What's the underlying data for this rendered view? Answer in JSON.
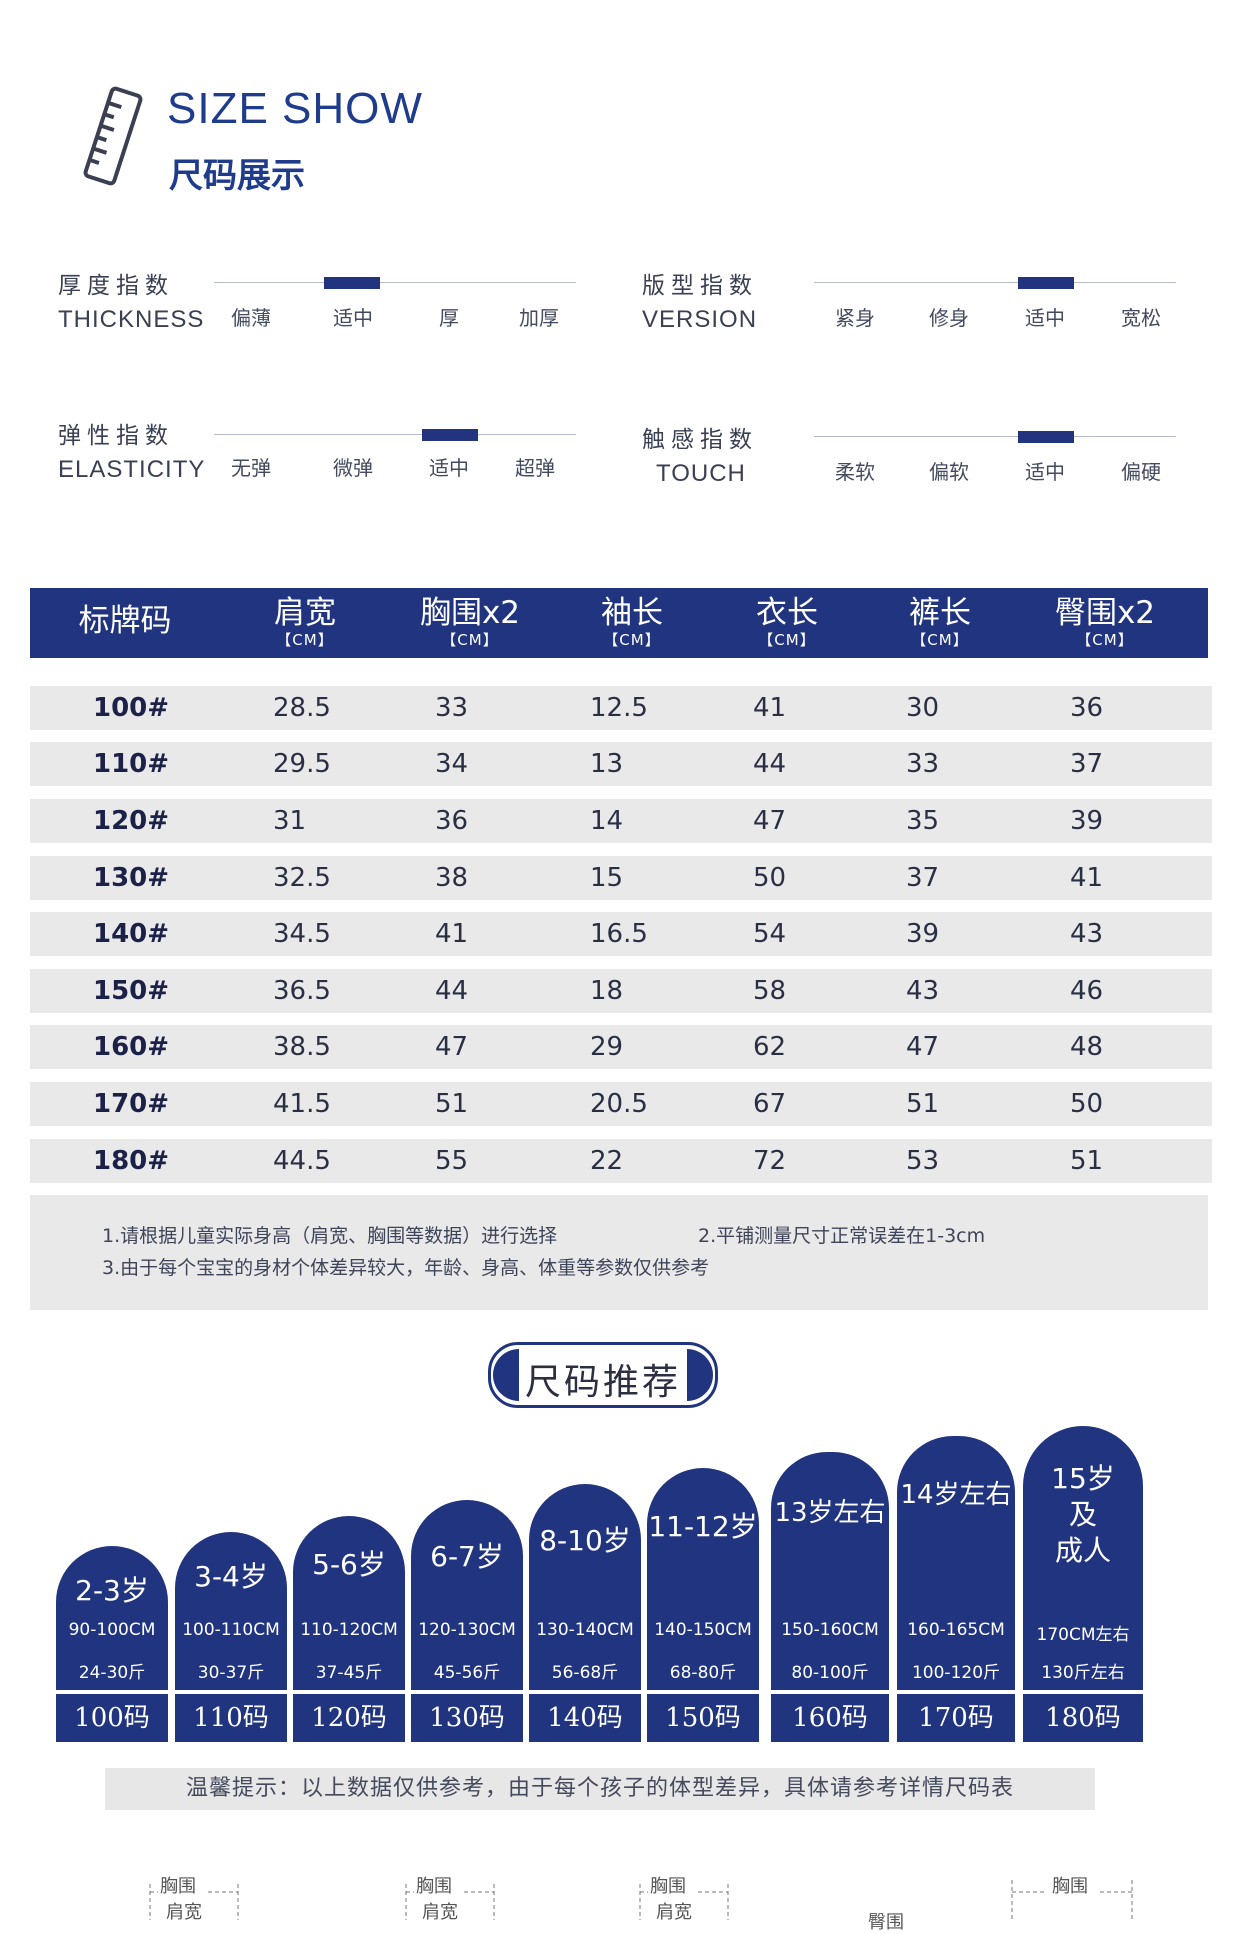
{
  "header": {
    "title_en": "SIZE SHOW",
    "title_zh": "尺码展示",
    "icon": "ruler-icon"
  },
  "indices": [
    {
      "zh": "厚度指数",
      "en": "THICKNESS",
      "options": [
        "偏薄",
        "适中",
        "厚",
        "加厚"
      ],
      "selected": 1
    },
    {
      "zh": "版型指数",
      "en": "VERSION",
      "options": [
        "紧身",
        "修身",
        "适中",
        "宽松"
      ],
      "selected": 2
    },
    {
      "zh": "弹性指数",
      "en": "ELASTICITY",
      "options": [
        "无弹",
        "微弹",
        "适中",
        "超弹"
      ],
      "selected": 2
    },
    {
      "zh": "触感指数",
      "en": "TOUCH",
      "options": [
        "柔软",
        "偏软",
        "适中",
        "偏硬"
      ],
      "selected": 2
    }
  ],
  "table": {
    "headers": [
      {
        "label": "标牌码",
        "unit": ""
      },
      {
        "label": "肩宽",
        "unit": "【CM】"
      },
      {
        "label": "胸围x2",
        "unit": "【CM】"
      },
      {
        "label": "袖长",
        "unit": "【CM】"
      },
      {
        "label": "衣长",
        "unit": "【CM】"
      },
      {
        "label": "裤长",
        "unit": "【CM】"
      },
      {
        "label": "臀围x2",
        "unit": "【CM】"
      }
    ],
    "rows": [
      [
        "100#",
        "28.5",
        "33",
        "12.5",
        "41",
        "30",
        "36"
      ],
      [
        "110#",
        "29.5",
        "34",
        "13",
        "44",
        "33",
        "37"
      ],
      [
        "120#",
        "31",
        "36",
        "14",
        "47",
        "35",
        "39"
      ],
      [
        "130#",
        "32.5",
        "38",
        "15",
        "50",
        "37",
        "41"
      ],
      [
        "140#",
        "34.5",
        "41",
        "16.5",
        "54",
        "39",
        "43"
      ],
      [
        "150#",
        "36.5",
        "44",
        "18",
        "58",
        "43",
        "46"
      ],
      [
        "160#",
        "38.5",
        "47",
        "29",
        "62",
        "47",
        "48"
      ],
      [
        "170#",
        "41.5",
        "51",
        "20.5",
        "67",
        "51",
        "50"
      ],
      [
        "180#",
        "44.5",
        "55",
        "22",
        "72",
        "53",
        "51"
      ]
    ],
    "notes": [
      "1.请根据儿童实际身高（肩宽、胸围等数据）进行选择",
      "2.平铺测量尺寸正常误差在1-3cm",
      "3.由于每个宝宝的身材个体差异较大，年龄、身高、体重等参数仅供参考"
    ]
  },
  "recommend": {
    "title": "尺码推荐",
    "items": [
      {
        "age": "2-3岁",
        "height": "90-100CM",
        "weight": "24-30斤",
        "code": "100码"
      },
      {
        "age": "3-4岁",
        "height": "100-110CM",
        "weight": "30-37斤",
        "code": "110码"
      },
      {
        "age": "5-6岁",
        "height": "110-120CM",
        "weight": "37-45斤",
        "code": "120码"
      },
      {
        "age": "6-7岁",
        "height": "120-130CM",
        "weight": "45-56斤",
        "code": "130码"
      },
      {
        "age": "8-10岁",
        "height": "130-140CM",
        "weight": "56-68斤",
        "code": "140码"
      },
      {
        "age": "11-12岁",
        "height": "140-150CM",
        "weight": "68-80斤",
        "code": "150码"
      },
      {
        "age": "13岁左右",
        "height": "150-160CM",
        "weight": "80-100斤",
        "code": "160码"
      },
      {
        "age": "14岁左右",
        "height": "160-165CM",
        "weight": "100-120斤",
        "code": "170码"
      },
      {
        "age": "15岁及成人",
        "age_lines": [
          "15岁",
          "及",
          "成人"
        ],
        "height": "170CM左右",
        "weight": "130斤左右",
        "code": "180码"
      }
    ],
    "tip": "温馨提示：以上数据仅供参考，由于每个孩子的体型差异，具体请参考详情尺码表"
  },
  "measure_labels": [
    "胸围",
    "肩宽",
    "胸围",
    "肩宽",
    "胸围",
    "肩宽",
    "臀围",
    "胸围"
  ]
}
